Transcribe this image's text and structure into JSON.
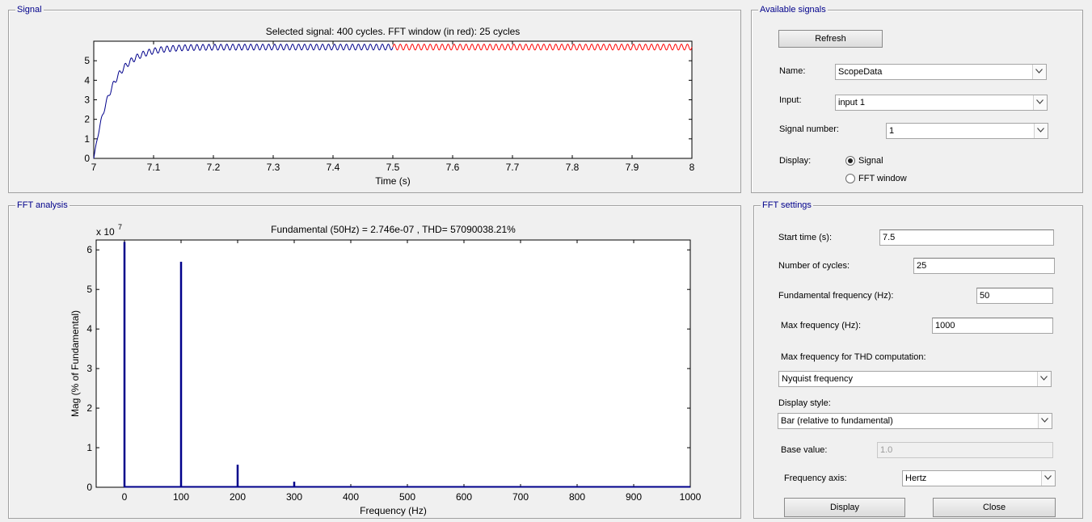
{
  "signal_panel": {
    "title": "Signal",
    "plot_title": "Selected signal: 400 cycles. FFT window (in red): 25 cycles",
    "xlabel": "Time (s)"
  },
  "fft_panel": {
    "title": "FFT analysis",
    "plot_title": "Fundamental (50Hz) = 2.746e-07 , THD= 57090038.21%",
    "xlabel": "Frequency (Hz)",
    "ylabel": "Mag (% of Fundamental)",
    "scale_label": "x 10",
    "scale_exp": "7"
  },
  "available_signals": {
    "title": "Available signals",
    "refresh_label": "Refresh",
    "name_label": "Name:",
    "name_value": "ScopeData",
    "input_label": "Input:",
    "input_value": "input 1",
    "signal_number_label": "Signal number:",
    "signal_number_value": "1",
    "display_label": "Display:",
    "display_options": [
      "Signal",
      "FFT window"
    ],
    "display_selected": "Signal"
  },
  "fft_settings": {
    "title": "FFT settings",
    "start_time_label": "Start time (s):",
    "start_time_value": "7.5",
    "cycles_label": "Number of cycles:",
    "cycles_value": "25",
    "fundamental_label": "Fundamental frequency (Hz):",
    "fundamental_value": "50",
    "max_freq_label": "Max frequency (Hz):",
    "max_freq_value": "1000",
    "thd_label": "Max frequency for THD computation:",
    "thd_value": "Nyquist frequency",
    "display_style_label": "Display style:",
    "display_style_value": "Bar (relative to fundamental)",
    "base_value_label": "Base value:",
    "base_value_value": "1.0",
    "freq_axis_label": "Frequency axis:",
    "freq_axis_value": "Hertz",
    "display_button": "Display",
    "close_button": "Close"
  },
  "colors": {
    "signal_line": "#00008b",
    "fft_window_line": "#ff0000",
    "bar": "#00008b",
    "panel_title": "#00008b"
  },
  "chart_data": [
    {
      "type": "line",
      "title": "Selected signal: 400 cycles. FFT window (in red): 25 cycles",
      "xlabel": "Time (s)",
      "ylabel": "",
      "xlim": [
        7,
        8
      ],
      "ylim": [
        0,
        6
      ],
      "xticks": [
        "7",
        "7.1",
        "7.2",
        "7.3",
        "7.4",
        "7.5",
        "7.6",
        "7.7",
        "7.8",
        "7.9",
        "8"
      ],
      "yticks": [
        "0",
        "1",
        "2",
        "3",
        "4",
        "5"
      ],
      "series": [
        {
          "color": "#00008b",
          "x_range": [
            7,
            7.5
          ],
          "steady_value": 5.7,
          "ripple_amplitude": 0.15,
          "ripple_hz": 100
        },
        {
          "color": "#ff0000",
          "x_range": [
            7.5,
            8
          ],
          "steady_value": 5.7,
          "ripple_amplitude": 0.15,
          "ripple_hz": 100
        }
      ]
    },
    {
      "type": "bar",
      "title": "Fundamental (50Hz) = 2.746e-07 , THD= 57090038.21%",
      "xlabel": "Frequency (Hz)",
      "ylabel": "Mag (% of Fundamental)",
      "xlim": [
        -50,
        1000
      ],
      "ylim": [
        0,
        6.25
      ],
      "y_multiplier": "x 10^7",
      "xticks": [
        "0",
        "100",
        "200",
        "300",
        "400",
        "500",
        "600",
        "700",
        "800",
        "900",
        "1000"
      ],
      "yticks": [
        "0",
        "1",
        "2",
        "3",
        "4",
        "5",
        "6"
      ],
      "x": [
        0,
        100,
        200,
        300
      ],
      "values": [
        6.2,
        5.7,
        0.57,
        0.14
      ]
    }
  ]
}
